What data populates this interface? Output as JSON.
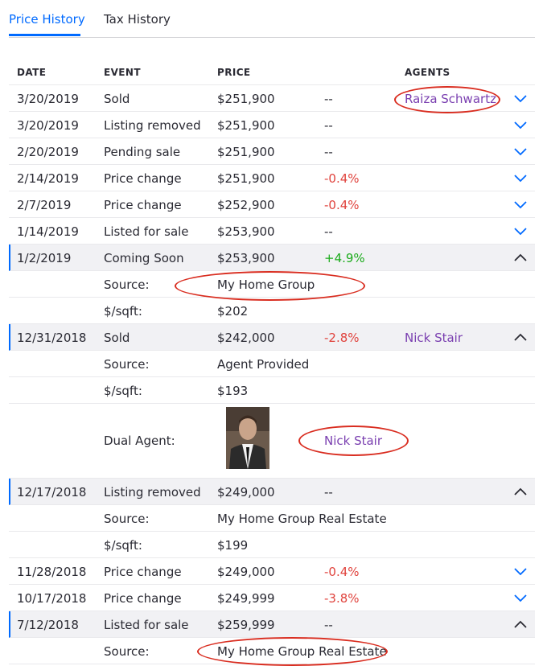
{
  "tabs": [
    {
      "label": "Price History",
      "active": true
    },
    {
      "label": "Tax History",
      "active": false
    }
  ],
  "table": {
    "headers": {
      "date": "DATE",
      "event": "EVENT",
      "price": "PRICE",
      "agents": "AGENTS"
    },
    "rows": [
      {
        "type": "event",
        "date": "3/20/2019",
        "event": "Sold",
        "price": "$251,900",
        "change": "--",
        "change_tone": "neutral",
        "agent": "Raiza Schwartz",
        "expanded": false
      },
      {
        "type": "event",
        "date": "3/20/2019",
        "event": "Listing removed",
        "price": "$251,900",
        "change": "--",
        "change_tone": "neutral",
        "agent": "",
        "expanded": false
      },
      {
        "type": "event",
        "date": "2/20/2019",
        "event": "Pending sale",
        "price": "$251,900",
        "change": "--",
        "change_tone": "neutral",
        "agent": "",
        "expanded": false
      },
      {
        "type": "event",
        "date": "2/14/2019",
        "event": "Price change",
        "price": "$251,900",
        "change": "-0.4%",
        "change_tone": "negative",
        "agent": "",
        "expanded": false
      },
      {
        "type": "event",
        "date": "2/7/2019",
        "event": "Price change",
        "price": "$252,900",
        "change": "-0.4%",
        "change_tone": "negative",
        "agent": "",
        "expanded": false
      },
      {
        "type": "event",
        "date": "1/14/2019",
        "event": "Listed for sale",
        "price": "$253,900",
        "change": "--",
        "change_tone": "neutral",
        "agent": "",
        "expanded": false
      },
      {
        "type": "event",
        "date": "1/2/2019",
        "event": "Coming Soon",
        "price": "$253,900",
        "change": "+4.9%",
        "change_tone": "positive",
        "agent": "",
        "expanded": true
      },
      {
        "type": "detail",
        "label": "Source:",
        "value": "My Home Group"
      },
      {
        "type": "detail",
        "label": "$/sqft:",
        "value": "$202"
      },
      {
        "type": "event",
        "date": "12/31/2018",
        "event": "Sold",
        "price": "$242,000",
        "change": "-2.8%",
        "change_tone": "negative",
        "agent": "Nick Stair",
        "expanded": true
      },
      {
        "type": "detail",
        "label": "Source:",
        "value": "Agent Provided"
      },
      {
        "type": "detail",
        "label": "$/sqft:",
        "value": "$193"
      },
      {
        "type": "agent",
        "label": "Dual Agent:",
        "agent": "Nick Stair"
      },
      {
        "type": "event",
        "date": "12/17/2018",
        "event": "Listing removed",
        "price": "$249,000",
        "change": "--",
        "change_tone": "neutral",
        "agent": "",
        "expanded": true
      },
      {
        "type": "detail",
        "label": "Source:",
        "value": "My Home Group Real Estate"
      },
      {
        "type": "detail",
        "label": "$/sqft:",
        "value": "$199"
      },
      {
        "type": "event",
        "date": "11/28/2018",
        "event": "Price change",
        "price": "$249,000",
        "change": "-0.4%",
        "change_tone": "negative",
        "agent": "",
        "expanded": false
      },
      {
        "type": "event",
        "date": "10/17/2018",
        "event": "Price change",
        "price": "$249,999",
        "change": "-3.8%",
        "change_tone": "negative",
        "agent": "",
        "expanded": false
      },
      {
        "type": "event",
        "date": "7/12/2018",
        "event": "Listed for sale",
        "price": "$259,999",
        "change": "--",
        "change_tone": "neutral",
        "agent": "",
        "expanded": true
      },
      {
        "type": "detail",
        "label": "Source:",
        "value": "My Home Group Real Estate"
      }
    ]
  },
  "icons": {
    "expand": "chevron-down-icon",
    "collapse": "chevron-up-icon",
    "agent_photo": "agent-photo"
  },
  "colors": {
    "accent": "#006aff",
    "agent_link": "#7a3fb0",
    "negative": "#e0433d",
    "positive": "#1bab1b",
    "annotation": "#d92d20",
    "expanded_bg": "#f1f1f4"
  }
}
